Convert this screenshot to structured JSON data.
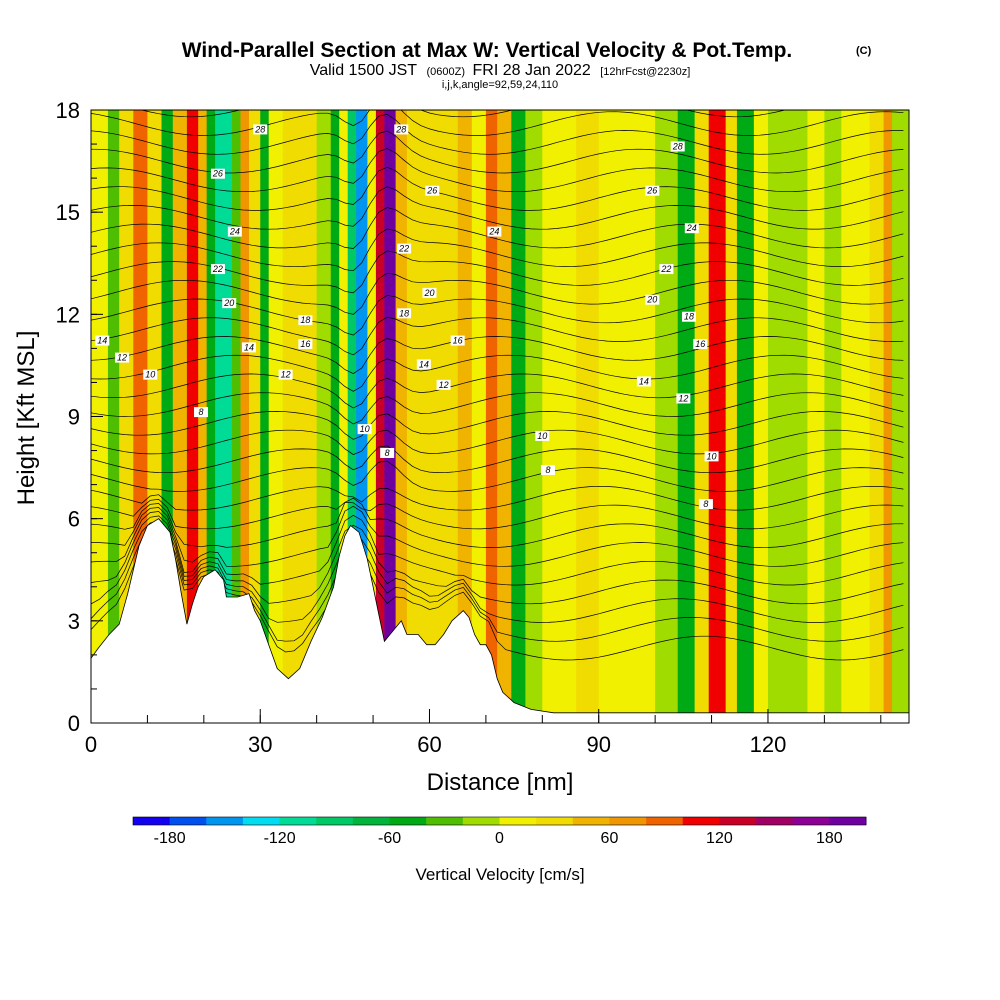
{
  "chart_data": {
    "type": "heatmap",
    "title": "Wind-Parallel Section at Max W: Vertical Velocity & Pot.Temp.",
    "copyright": "(C)",
    "subtitle_pre": "Valid 1500 JST",
    "subtitle_utc": "(0600Z)",
    "subtitle_date": "FRI 28 Jan 2022",
    "subtitle_run": "[12hrFcst@2230z]",
    "subtitle_small": "i,j,k,angle=92,59,24,110",
    "xlabel": "Distance [nm]",
    "ylabel": "Height [Kft MSL]",
    "xlim": [
      0,
      145
    ],
    "ylim": [
      0,
      18
    ],
    "x_ticks": [
      "0",
      "30",
      "60",
      "90",
      "120"
    ],
    "y_ticks": [
      "0",
      "3",
      "6",
      "9",
      "12",
      "15",
      "18"
    ],
    "colorbar": {
      "title": "Vertical Velocity [cm/s]",
      "tick_labels": [
        "-180",
        "-120",
        "-60",
        "0",
        "60",
        "120",
        "180"
      ],
      "colors": [
        "#1400f0",
        "#0050f0",
        "#0096f0",
        "#00dcf0",
        "#00dc96",
        "#00c864",
        "#00b43c",
        "#00aa14",
        "#50be00",
        "#a0dc00",
        "#f0f000",
        "#f0dc00",
        "#f0b400",
        "#f09600",
        "#f06400",
        "#f00000",
        "#c80028",
        "#a00064",
        "#8c0096",
        "#6e00a0"
      ]
    },
    "background_band_colors": {
      "strong_down": "#00dcf0",
      "mod_down": "#00b43c",
      "weak_down": "#50be00",
      "near_zero_neg": "#a0dc00",
      "near_zero_pos": "#f0f000",
      "weak_up": "#f0dc00",
      "mod_up": "#f0b400",
      "strong_up": "#f06400",
      "very_strong_up": "#c80028",
      "extreme_up": "#8c0096"
    },
    "velocity_bands": [
      {
        "x": [
          0,
          3
        ],
        "v": 10
      },
      {
        "x": [
          3,
          5
        ],
        "v": -40
      },
      {
        "x": [
          5,
          7.5
        ],
        "v": 20
      },
      {
        "x": [
          7.5,
          10
        ],
        "v": 80
      },
      {
        "x": [
          10,
          12.5
        ],
        "v": 20
      },
      {
        "x": [
          12.5,
          14.5
        ],
        "v": -60
      },
      {
        "x": [
          14.5,
          17
        ],
        "v": 40
      },
      {
        "x": [
          17,
          19
        ],
        "v": 100
      },
      {
        "x": [
          19,
          20.5
        ],
        "v": 40
      },
      {
        "x": [
          20.5,
          22
        ],
        "v": -60
      },
      {
        "x": [
          22,
          25
        ],
        "v": -120
      },
      {
        "x": [
          25,
          26.5
        ],
        "v": -40
      },
      {
        "x": [
          26.5,
          28
        ],
        "v": 60
      },
      {
        "x": [
          28,
          30
        ],
        "v": 20
      },
      {
        "x": [
          30,
          31.5
        ],
        "v": -60
      },
      {
        "x": [
          31.5,
          34
        ],
        "v": 10
      },
      {
        "x": [
          34,
          40
        ],
        "v": 30
      },
      {
        "x": [
          40,
          42.5
        ],
        "v": -20
      },
      {
        "x": [
          42.5,
          44
        ],
        "v": -60
      },
      {
        "x": [
          44,
          45.5
        ],
        "v": 10
      },
      {
        "x": [
          45.5,
          47
        ],
        "v": -100
      },
      {
        "x": [
          47,
          49
        ],
        "v": -160
      },
      {
        "x": [
          49,
          50.5
        ],
        "v": 10
      },
      {
        "x": [
          50.5,
          52
        ],
        "v": 120
      },
      {
        "x": [
          52,
          54
        ],
        "v": 180
      },
      {
        "x": [
          54,
          56
        ],
        "v": 40
      },
      {
        "x": [
          56,
          65
        ],
        "v": 20
      },
      {
        "x": [
          65,
          67.5
        ],
        "v": 40
      },
      {
        "x": [
          67.5,
          70
        ],
        "v": 10
      },
      {
        "x": [
          70,
          72
        ],
        "v": 80
      },
      {
        "x": [
          72,
          74.5
        ],
        "v": 40
      },
      {
        "x": [
          74.5,
          77
        ],
        "v": -60
      },
      {
        "x": [
          77,
          80
        ],
        "v": -20
      },
      {
        "x": [
          80,
          86
        ],
        "v": 10
      },
      {
        "x": [
          86,
          90
        ],
        "v": 20
      },
      {
        "x": [
          90,
          100
        ],
        "v": 10
      },
      {
        "x": [
          100,
          104
        ],
        "v": -20
      },
      {
        "x": [
          104,
          107
        ],
        "v": -60
      },
      {
        "x": [
          107,
          109.5
        ],
        "v": 20
      },
      {
        "x": [
          109.5,
          112.5
        ],
        "v": 110
      },
      {
        "x": [
          112.5,
          114.5
        ],
        "v": 20
      },
      {
        "x": [
          114.5,
          117.5
        ],
        "v": -60
      },
      {
        "x": [
          117.5,
          120
        ],
        "v": 10
      },
      {
        "x": [
          120,
          122.5
        ],
        "v": -10
      },
      {
        "x": [
          122.5,
          127
        ],
        "v": -20
      },
      {
        "x": [
          127,
          130
        ],
        "v": 10
      },
      {
        "x": [
          130,
          133
        ],
        "v": -20
      },
      {
        "x": [
          133,
          138
        ],
        "v": 10
      },
      {
        "x": [
          138,
          140.5
        ],
        "v": 20
      },
      {
        "x": [
          140.5,
          142
        ],
        "v": 60
      },
      {
        "x": [
          142,
          145
        ],
        "v": -20
      }
    ],
    "terrain": [
      [
        0,
        1.9
      ],
      [
        1.3,
        2.2
      ],
      [
        3.2,
        2.6
      ],
      [
        5,
        2.9
      ],
      [
        6.5,
        3.8
      ],
      [
        8.5,
        5.2
      ],
      [
        10,
        5.8
      ],
      [
        12,
        6.0
      ],
      [
        14,
        5.6
      ],
      [
        15,
        4.8
      ],
      [
        16,
        3.8
      ],
      [
        17,
        2.9
      ],
      [
        18,
        3.5
      ],
      [
        19,
        4.0
      ],
      [
        20,
        4.3
      ],
      [
        22,
        4.5
      ],
      [
        23.5,
        4.2
      ],
      [
        24,
        3.7
      ],
      [
        26,
        3.7
      ],
      [
        28,
        3.8
      ],
      [
        29,
        3.3
      ],
      [
        30,
        3.0
      ],
      [
        31.5,
        2.3
      ],
      [
        33,
        1.6
      ],
      [
        35,
        1.3
      ],
      [
        37,
        1.6
      ],
      [
        39,
        2.4
      ],
      [
        41,
        3.1
      ],
      [
        43,
        4.0
      ],
      [
        44,
        4.9
      ],
      [
        45,
        5.5
      ],
      [
        46,
        5.8
      ],
      [
        47.5,
        5.6
      ],
      [
        49,
        4.8
      ],
      [
        50,
        4.0
      ],
      [
        51,
        3.2
      ],
      [
        52,
        2.4
      ],
      [
        53,
        2.6
      ],
      [
        55,
        3.0
      ],
      [
        56,
        2.6
      ],
      [
        58,
        2.6
      ],
      [
        59.5,
        2.3
      ],
      [
        61,
        2.3
      ],
      [
        62.5,
        2.6
      ],
      [
        64,
        3.0
      ],
      [
        66,
        3.3
      ],
      [
        67,
        3.1
      ],
      [
        68,
        2.6
      ],
      [
        69,
        2.3
      ],
      [
        70,
        2.3
      ],
      [
        71,
        2.0
      ],
      [
        72,
        1.3
      ],
      [
        73,
        0.9
      ],
      [
        75,
        0.6
      ],
      [
        78,
        0.4
      ],
      [
        82,
        0.3
      ],
      [
        92,
        0.3
      ],
      [
        94,
        0.3
      ],
      [
        97,
        0.3
      ],
      [
        145,
        0.3
      ]
    ],
    "theta_labels": [
      {
        "text": "28",
        "x": 30,
        "y": 17.4
      },
      {
        "text": "26",
        "x": 22.5,
        "y": 16.1
      },
      {
        "text": "24",
        "x": 25.5,
        "y": 14.4
      },
      {
        "text": "22",
        "x": 22.5,
        "y": 13.3
      },
      {
        "text": "20",
        "x": 24.5,
        "y": 12.3
      },
      {
        "text": "18",
        "x": 38,
        "y": 11.8
      },
      {
        "text": "16",
        "x": 38,
        "y": 11.1
      },
      {
        "text": "14",
        "x": 28,
        "y": 11.0
      },
      {
        "text": "12",
        "x": 34.5,
        "y": 10.2
      },
      {
        "text": "14",
        "x": 2,
        "y": 11.2
      },
      {
        "text": "12",
        "x": 5.5,
        "y": 10.7
      },
      {
        "text": "10",
        "x": 10.5,
        "y": 10.2
      },
      {
        "text": "8",
        "x": 19.5,
        "y": 9.1
      },
      {
        "text": "28",
        "x": 55,
        "y": 17.4
      },
      {
        "text": "26",
        "x": 60.5,
        "y": 15.6
      },
      {
        "text": "24",
        "x": 71.5,
        "y": 14.4
      },
      {
        "text": "22",
        "x": 55.5,
        "y": 13.9
      },
      {
        "text": "20",
        "x": 60,
        "y": 12.6
      },
      {
        "text": "18",
        "x": 55.5,
        "y": 12.0
      },
      {
        "text": "16",
        "x": 65,
        "y": 11.2
      },
      {
        "text": "14",
        "x": 59,
        "y": 10.5
      },
      {
        "text": "12",
        "x": 62.5,
        "y": 9.9
      },
      {
        "text": "10",
        "x": 48.5,
        "y": 8.6
      },
      {
        "text": "8",
        "x": 52.5,
        "y": 7.9
      },
      {
        "text": "28",
        "x": 104,
        "y": 16.9
      },
      {
        "text": "26",
        "x": 99.5,
        "y": 15.6
      },
      {
        "text": "24",
        "x": 106.5,
        "y": 14.5
      },
      {
        "text": "22",
        "x": 102,
        "y": 13.3
      },
      {
        "text": "20",
        "x": 99.5,
        "y": 12.4
      },
      {
        "text": "18",
        "x": 106,
        "y": 11.9
      },
      {
        "text": "16",
        "x": 108,
        "y": 11.1
      },
      {
        "text": "14",
        "x": 98,
        "y": 10.0
      },
      {
        "text": "12",
        "x": 105,
        "y": 9.5
      },
      {
        "text": "10",
        "x": 80,
        "y": 8.4
      },
      {
        "text": "8",
        "x": 81,
        "y": 7.4
      },
      {
        "text": "10",
        "x": 110,
        "y": 7.8
      },
      {
        "text": "8",
        "x": 109,
        "y": 6.4
      }
    ]
  }
}
